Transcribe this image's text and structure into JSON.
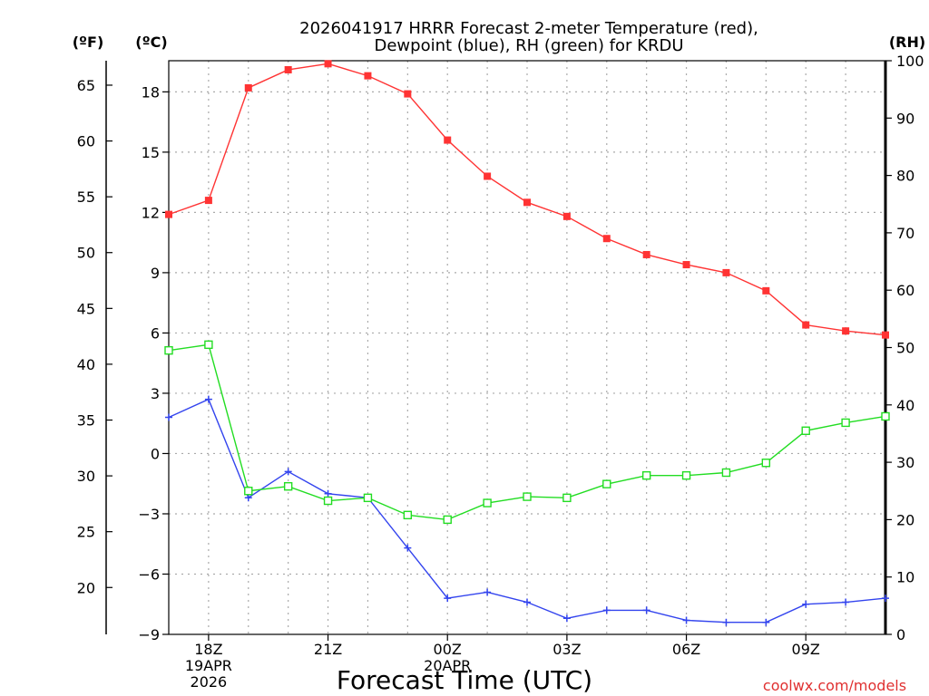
{
  "chart_data": {
    "type": "line",
    "title_line1": "2026041917 HRRR Forecast 2-meter Temperature (red),",
    "title_line2": "Dewpoint (blue), RH (green) for KRDU",
    "xlabel": "Forecast Time (UTC)",
    "credit": "coolwx.com/models",
    "left_outer_unit": "(ºF)",
    "left_inner_unit": "(ºC)",
    "right_unit": "(RH)",
    "x_hours": [
      17,
      18,
      19,
      20,
      21,
      22,
      23,
      24,
      25,
      26,
      27,
      28,
      29,
      30,
      31,
      32,
      33,
      34,
      35
    ],
    "x_tick_labels": [
      {
        "hour": 18,
        "lines": [
          "18Z",
          "19APR",
          "2026"
        ]
      },
      {
        "hour": 21,
        "lines": [
          "21Z"
        ]
      },
      {
        "hour": 24,
        "lines": [
          "00Z",
          "20APR"
        ]
      },
      {
        "hour": 27,
        "lines": [
          "03Z"
        ]
      },
      {
        "hour": 30,
        "lines": [
          "06Z"
        ]
      },
      {
        "hour": 33,
        "lines": [
          "09Z"
        ]
      }
    ],
    "celsius_axis": {
      "min": -9.0,
      "max": 19.55,
      "ticks": [
        -9,
        -6,
        -3,
        0,
        3,
        6,
        9,
        12,
        15,
        18
      ]
    },
    "fahrenheit_ticks": [
      20,
      25,
      30,
      35,
      40,
      45,
      50,
      55,
      60,
      65
    ],
    "rh_axis": {
      "min": 0,
      "max": 100,
      "ticks": [
        0,
        10,
        20,
        30,
        40,
        50,
        60,
        70,
        80,
        90,
        100
      ]
    },
    "series": [
      {
        "name": "2-meter Temperature",
        "color": "#ff3333",
        "marker": "filled-square",
        "axis": "celsius",
        "values": [
          11.9,
          12.6,
          18.2,
          19.1,
          19.4,
          18.8,
          17.9,
          15.6,
          13.8,
          12.5,
          11.8,
          10.7,
          9.9,
          9.4,
          9.0,
          8.1,
          6.4,
          6.1,
          5.9
        ]
      },
      {
        "name": "Dewpoint",
        "color": "#3344ee",
        "marker": "plus",
        "axis": "celsius",
        "values": [
          1.8,
          2.7,
          -2.2,
          -0.9,
          -2.0,
          -2.2,
          -4.7,
          -7.2,
          -6.9,
          -7.4,
          -8.2,
          -7.8,
          -7.8,
          -8.3,
          -8.4,
          -8.4,
          -7.5,
          -7.4,
          -7.2
        ]
      },
      {
        "name": "RH",
        "color": "#22dd22",
        "marker": "open-square",
        "axis": "rh",
        "values": [
          49.5,
          50.5,
          25.0,
          25.8,
          23.3,
          23.8,
          20.8,
          20.0,
          22.9,
          24.0,
          23.8,
          26.2,
          27.7,
          27.7,
          28.2,
          29.9,
          35.5,
          36.9,
          38.0
        ]
      }
    ]
  }
}
